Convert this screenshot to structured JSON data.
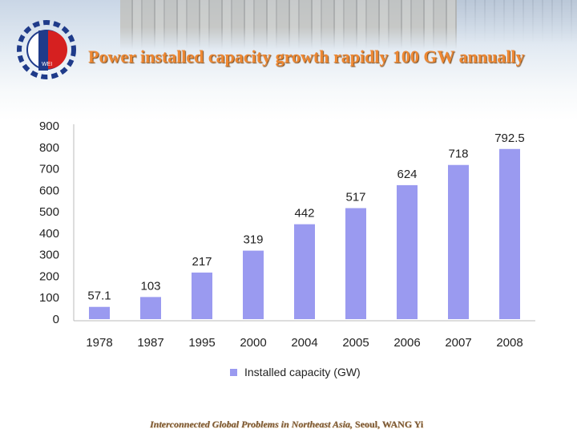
{
  "slide": {
    "title": "Power installed capacity growth rapidly 100 GW annually",
    "footer_italic": "Interconnected Global Problems in Northeast Asia,",
    "footer_plain": "Seoul,  WANG Yi",
    "logo_text": "WEI"
  },
  "colors": {
    "bar": "#9a9af0",
    "title": "#ee8833",
    "grid": "#d8d8d8"
  },
  "chart_data": {
    "type": "bar",
    "categories": [
      "1978",
      "1987",
      "1995",
      "2000",
      "2004",
      "2005",
      "2006",
      "2007",
      "2008"
    ],
    "series": [
      {
        "name": "Installed capacity (GW)",
        "values": [
          57.1,
          103,
          217,
          319,
          442,
          517,
          624,
          718,
          792.5
        ]
      }
    ],
    "data_labels": [
      "57.1",
      "103",
      "217",
      "319",
      "442",
      "517",
      "624",
      "718",
      "792.5"
    ],
    "y_ticks": [
      0,
      100,
      200,
      300,
      400,
      500,
      600,
      700,
      800,
      900
    ],
    "ylim": [
      0,
      900
    ],
    "grid": false,
    "legend": "bottom"
  }
}
